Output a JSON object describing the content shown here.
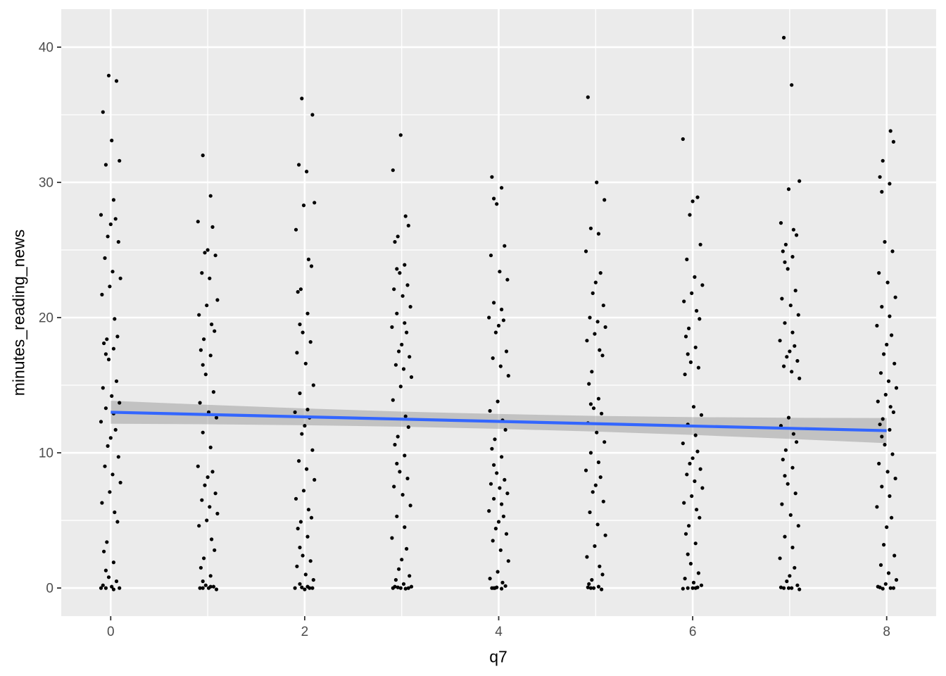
{
  "figure": {
    "xlabel": "q7",
    "ylabel": "minutes_reading_news"
  },
  "chart_data": {
    "type": "scatter",
    "title": "",
    "xlabel": "q7",
    "ylabel": "minutes_reading_news",
    "legend": "none",
    "grid": "on",
    "x_ticks": [
      0,
      2,
      4,
      6,
      8
    ],
    "x_minor_ticks": [
      1,
      3,
      5,
      7
    ],
    "y_ticks": [
      0,
      10,
      20,
      30,
      40
    ],
    "y_minor_ticks": [
      5,
      15,
      25,
      35
    ],
    "xlim": [
      -0.51,
      8.51
    ],
    "ylim": [
      -2.08,
      42.81
    ],
    "panel_background": "#EBEBEB",
    "grid_color": "#FFFFFF",
    "point_color": "#000000",
    "point_radius": 2.6,
    "tick_label_color": "#4D4D4D",
    "tick_mark_color": "#333333",
    "axis_title_color": "#000000",
    "smooth": {
      "method": "linear",
      "color": "#3366FF",
      "line_width": 4.2,
      "x": [
        0,
        8
      ],
      "y": [
        13.0,
        11.64
      ],
      "ci_fill": "#808080",
      "ci_opacity": 0.38,
      "ci_x": [
        0,
        1,
        2,
        3,
        4,
        5,
        6,
        7,
        8
      ],
      "ci_upper": [
        13.85,
        13.55,
        13.28,
        13.05,
        12.87,
        12.73,
        12.64,
        12.59,
        12.57
      ],
      "ci_lower": [
        12.15,
        12.11,
        12.04,
        11.93,
        11.77,
        11.57,
        11.32,
        11.03,
        10.71
      ]
    },
    "points": {
      "jitter_dx": [
        -0.02,
        0.06,
        -0.08,
        0.01,
        0.09,
        -0.05,
        0.03,
        -0.1,
        0.05,
        0.0,
        -0.03,
        0.08,
        -0.06,
        0.02,
        0.1,
        -0.01,
        -0.09,
        0.04,
        0.07,
        -0.04,
        -0.07,
        0.03,
        -0.05
      ],
      "columns": [
        {
          "x": 0,
          "y": [
            37.9,
            37.5,
            35.2,
            33.1,
            31.6,
            31.3,
            28.7,
            27.6,
            27.3,
            26.9,
            26.0,
            25.6,
            24.4,
            23.4,
            22.9,
            22.3,
            21.7,
            19.9,
            18.6,
            18.4,
            18.1,
            17.7,
            17.3,
            16.9,
            15.3,
            14.8,
            14.2,
            13.7,
            13.3,
            12.9,
            12.3,
            11.7,
            11.1,
            10.5,
            9.7,
            9.0,
            8.4,
            7.8,
            7.1,
            6.3,
            5.6,
            4.9,
            3.4,
            2.7,
            1.9,
            1.3,
            0.8,
            0.5,
            0.2,
            0.1,
            0.0,
            0.0,
            -0.1,
            0.0
          ]
        },
        {
          "x": 1,
          "y": [
            32.0,
            29.0,
            27.1,
            26.7,
            25.0,
            24.8,
            24.6,
            23.3,
            22.9,
            21.3,
            20.9,
            20.2,
            19.5,
            19.0,
            18.4,
            17.6,
            17.2,
            16.5,
            15.8,
            14.5,
            13.7,
            13.0,
            12.6,
            11.5,
            10.4,
            9.0,
            8.6,
            8.2,
            7.6,
            7.0,
            6.5,
            6.0,
            5.5,
            5.0,
            4.6,
            3.6,
            2.8,
            2.2,
            1.5,
            0.9,
            0.5,
            0.2,
            0.1,
            0.0,
            0.0,
            -0.1,
            0.0,
            0.1
          ]
        },
        {
          "x": 2,
          "y": [
            36.2,
            35.0,
            31.3,
            30.8,
            28.5,
            28.3,
            26.5,
            24.3,
            23.8,
            22.1,
            21.9,
            20.3,
            19.5,
            18.9,
            18.2,
            17.4,
            16.6,
            15.0,
            14.4,
            13.2,
            13.0,
            12.6,
            12.0,
            11.4,
            10.2,
            9.4,
            8.8,
            8.0,
            7.2,
            6.6,
            5.8,
            5.2,
            4.9,
            4.4,
            3.8,
            3.0,
            2.4,
            2.0,
            1.6,
            1.0,
            0.6,
            0.3,
            0.1,
            0.0,
            0.0,
            -0.1,
            0.05,
            0.0
          ]
        },
        {
          "x": 3,
          "y": [
            33.5,
            30.9,
            27.5,
            26.8,
            26.0,
            25.6,
            23.9,
            23.6,
            23.3,
            22.4,
            22.1,
            21.6,
            20.8,
            20.3,
            19.6,
            19.3,
            18.9,
            18.0,
            17.5,
            17.1,
            16.5,
            16.2,
            15.6,
            14.9,
            13.9,
            12.7,
            11.9,
            11.2,
            10.6,
            9.8,
            9.2,
            8.6,
            8.1,
            7.5,
            6.9,
            6.1,
            5.3,
            4.5,
            3.7,
            2.9,
            2.1,
            1.4,
            0.9,
            0.6,
            0.3,
            0.1,
            0.0,
            0.0,
            -0.05,
            0.0,
            0.05,
            0.1
          ]
        },
        {
          "x": 4,
          "y": [
            30.4,
            29.6,
            28.8,
            28.4,
            25.3,
            24.6,
            23.4,
            22.8,
            21.1,
            20.6,
            20.0,
            19.8,
            19.4,
            18.9,
            17.5,
            17.0,
            16.4,
            15.7,
            13.8,
            13.1,
            12.4,
            11.7,
            11.0,
            10.3,
            9.7,
            9.1,
            8.5,
            8.0,
            7.7,
            7.4,
            7.0,
            6.6,
            6.2,
            5.7,
            5.3,
            4.9,
            4.4,
            4.0,
            3.5,
            2.8,
            2.0,
            1.2,
            0.7,
            0.4,
            0.15,
            0.0,
            0.0,
            -0.05,
            0.0,
            0.05
          ]
        },
        {
          "x": 5,
          "y": [
            36.3,
            30.0,
            28.7,
            26.6,
            26.2,
            24.9,
            23.3,
            22.6,
            21.8,
            20.9,
            20.0,
            19.7,
            19.3,
            18.8,
            18.3,
            17.6,
            17.2,
            16.0,
            15.1,
            14.0,
            13.6,
            13.3,
            12.9,
            12.2,
            11.5,
            10.8,
            10.0,
            9.3,
            8.7,
            8.2,
            7.6,
            7.1,
            6.4,
            5.6,
            4.7,
            3.9,
            3.1,
            2.3,
            1.6,
            1.0,
            0.6,
            0.3,
            0.1,
            0.0,
            0.0,
            -0.1,
            0.05
          ]
        },
        {
          "x": 6,
          "y": [
            33.2,
            28.9,
            28.6,
            27.6,
            25.4,
            24.3,
            23.0,
            22.4,
            21.8,
            21.2,
            20.5,
            19.9,
            19.2,
            18.6,
            17.8,
            17.3,
            16.7,
            16.3,
            15.8,
            13.4,
            12.8,
            12.1,
            11.3,
            10.7,
            10.1,
            9.6,
            9.2,
            8.8,
            8.4,
            7.9,
            7.4,
            6.8,
            6.3,
            5.8,
            5.2,
            4.6,
            4.0,
            3.3,
            2.5,
            1.8,
            1.1,
            0.7,
            0.4,
            0.2,
            0.0,
            0.0,
            -0.05,
            0.05,
            0.0
          ]
        },
        {
          "x": 7,
          "y": [
            40.7,
            37.2,
            30.1,
            29.5,
            27.0,
            26.5,
            26.1,
            25.4,
            24.9,
            24.5,
            24.1,
            23.6,
            22.0,
            21.4,
            20.9,
            20.2,
            19.6,
            18.9,
            18.3,
            17.9,
            17.5,
            17.1,
            16.8,
            16.4,
            16.0,
            15.5,
            12.6,
            12.0,
            11.4,
            10.8,
            10.2,
            9.5,
            8.9,
            8.3,
            7.7,
            7.0,
            6.2,
            5.4,
            4.6,
            3.8,
            3.0,
            2.2,
            1.5,
            0.9,
            0.5,
            0.2,
            0.0,
            0.0,
            -0.1,
            0.0,
            0.05
          ]
        },
        {
          "x": 8,
          "y": [
            33.8,
            33.0,
            31.6,
            30.4,
            29.9,
            29.3,
            25.6,
            24.9,
            23.3,
            22.6,
            21.5,
            20.8,
            20.1,
            19.4,
            18.7,
            18.0,
            17.3,
            16.6,
            15.9,
            15.3,
            14.8,
            14.3,
            13.8,
            13.4,
            13.0,
            12.5,
            12.1,
            11.7,
            11.2,
            10.6,
            9.9,
            9.2,
            8.6,
            8.1,
            7.5,
            6.8,
            6.0,
            5.2,
            4.5,
            3.2,
            2.4,
            1.7,
            1.1,
            0.6,
            0.3,
            0.1,
            0.0,
            0.0,
            -0.05,
            0.05
          ]
        }
      ]
    }
  }
}
